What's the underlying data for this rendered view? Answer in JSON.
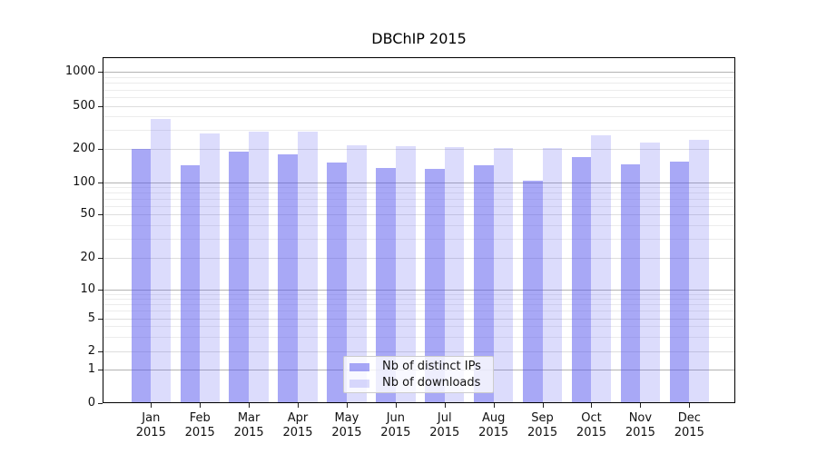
{
  "chart_data": {
    "type": "bar",
    "title": "DBChIP 2015",
    "categories": [
      "Jan 2015",
      "Feb 2015",
      "Mar 2015",
      "Apr 2015",
      "May 2015",
      "Jun 2015",
      "Jul 2015",
      "Aug 2015",
      "Sep 2015",
      "Oct 2015",
      "Nov 2015",
      "Dec 2015"
    ],
    "series": [
      {
        "name": "Nb of distinct IPs",
        "color": "rgba(82,82,238,0.5)",
        "values": [
          200,
          143,
          190,
          177,
          150,
          135,
          131,
          143,
          103,
          169,
          146,
          153
        ]
      },
      {
        "name": "Nb of downloads",
        "color": "rgba(82,82,238,0.2)",
        "values": [
          380,
          277,
          287,
          287,
          217,
          212,
          208,
          203,
          205,
          266,
          230,
          241
        ]
      }
    ],
    "xlabel": "",
    "ylabel": "",
    "yscale": "symlog",
    "yticks": [
      0,
      1,
      2,
      5,
      10,
      20,
      50,
      100,
      200,
      500,
      1000
    ],
    "ylim": [
      0,
      1100
    ],
    "grid": true,
    "legend_position": "lower-center"
  },
  "colors": {
    "bar_distinct_ips": "rgba(82,82,238,0.5)",
    "bar_downloads": "rgba(82,82,238,0.2)",
    "grid_major": "#b3b3b3",
    "grid_mid": "#dedede",
    "grid_minor": "#ececec",
    "spine": "#000000",
    "text": "#111111",
    "legend_border": "#cccccc",
    "legend_bg": "rgba(255,255,255,0.8)"
  }
}
